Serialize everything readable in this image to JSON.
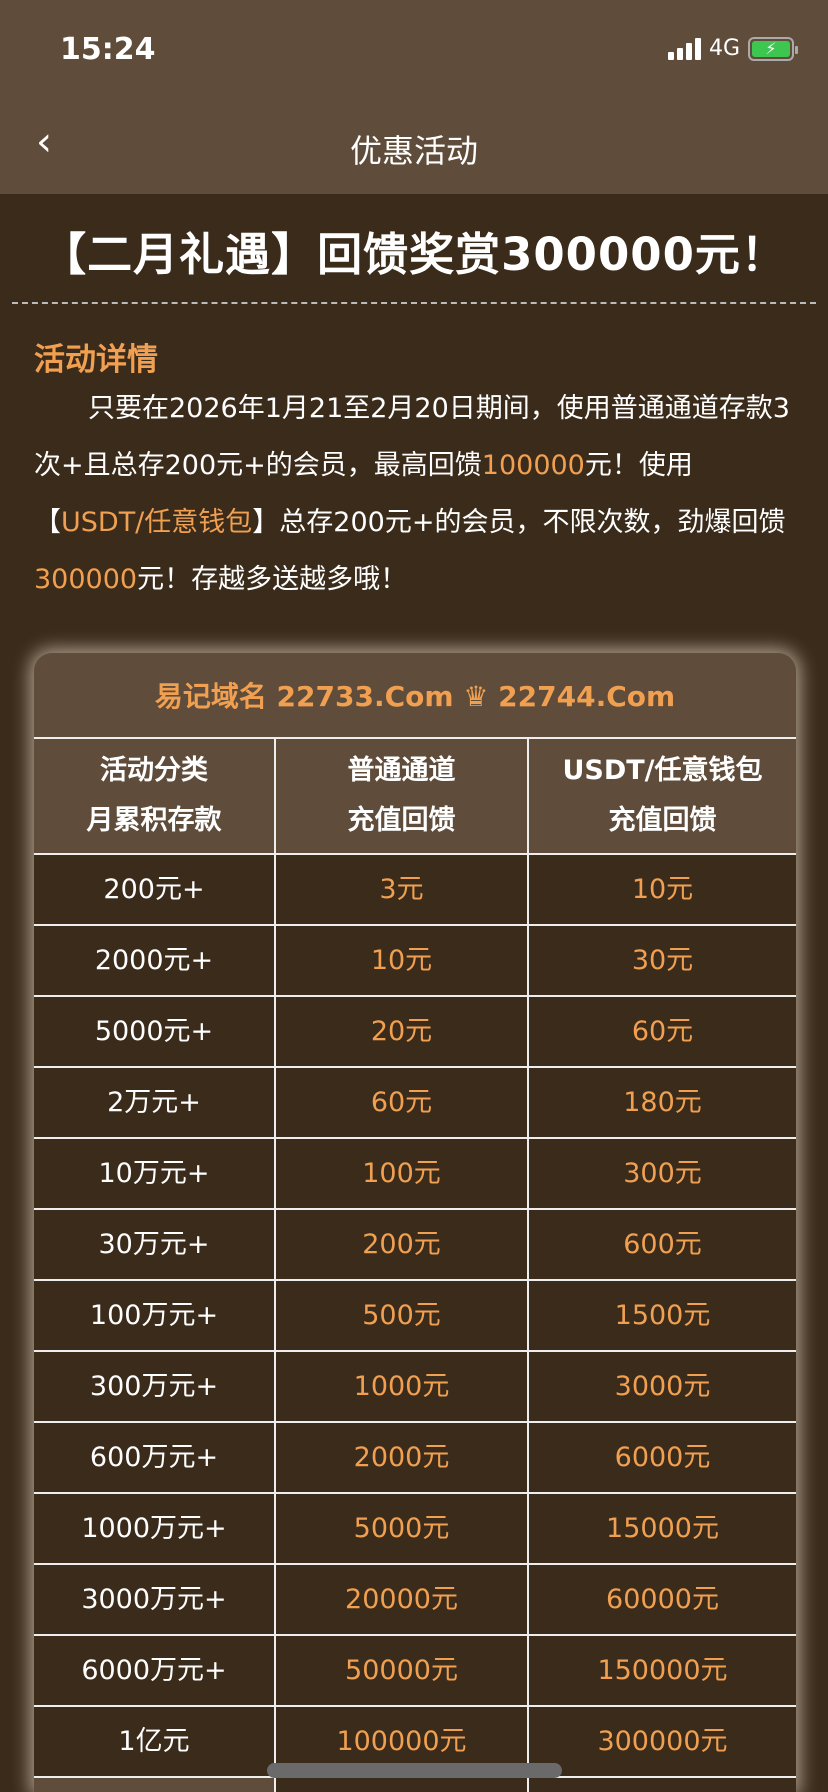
{
  "status_bar": {
    "time": "15:24",
    "network": "4G",
    "battery": "charging"
  },
  "nav": {
    "back_icon": "chevron-left",
    "title": "优惠活动"
  },
  "headline": "【二月礼遇】回馈奖赏300000元！",
  "section_title": "活动详情",
  "paragraph": {
    "p1": "只要在2026年1月21至2月20日期间，使用普通通道存款3次+且总存200元+的会员，最高回馈",
    "h1": "100000",
    "p2": "元！使用【",
    "h2": "USDT/任意钱包",
    "p3": "】总存200元+的会员，不限次数，劲爆回馈",
    "h3": "300000",
    "p4": "元！存越多送越多哦！"
  },
  "table": {
    "banner": "易记域名 22733.Com ♛ 22744.Com",
    "headers": [
      [
        "活动分类",
        "月累积存款"
      ],
      [
        "普通通道",
        "充值回馈"
      ],
      [
        "USDT/任意钱包",
        "充值回馈"
      ]
    ],
    "rows": [
      [
        "200元+",
        "3元",
        "10元"
      ],
      [
        "2000元+",
        "10元",
        "30元"
      ],
      [
        "5000元+",
        "20元",
        "60元"
      ],
      [
        "2万元+",
        "60元",
        "180元"
      ],
      [
        "10万元+",
        "100元",
        "300元"
      ],
      [
        "30万元+",
        "200元",
        "600元"
      ],
      [
        "100万元+",
        "500元",
        "1500元"
      ],
      [
        "300万元+",
        "1000元",
        "3000元"
      ],
      [
        "600万元+",
        "2000元",
        "6000元"
      ],
      [
        "1000万元+",
        "5000元",
        "15000元"
      ],
      [
        "3000万元+",
        "20000元",
        "60000元"
      ],
      [
        "6000万元+",
        "50000元",
        "150000元"
      ],
      [
        "1亿元",
        "100000元",
        "300000元"
      ]
    ]
  },
  "colors": {
    "accent": "#f0a050",
    "nav_bg": "#5f4c3a",
    "page_bg": "#3b2b1b"
  }
}
